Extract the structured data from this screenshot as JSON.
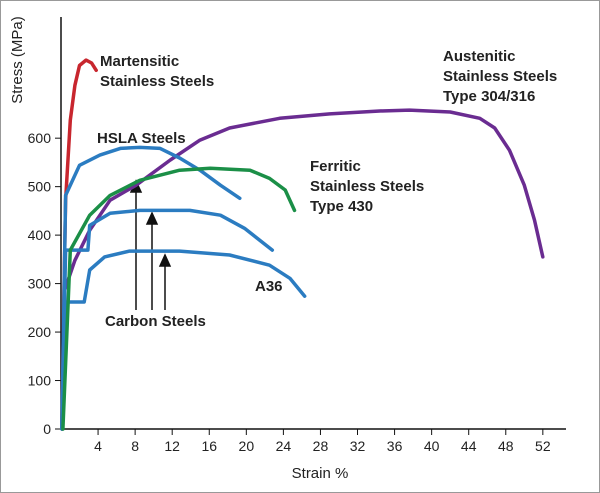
{
  "chart_data": {
    "type": "line",
    "x_label": "Strain %",
    "y_label": "Stress (MPa)",
    "xlim": [
      0,
      54.5
    ],
    "ylim": [
      0,
      850
    ],
    "xticks": [
      4,
      8,
      12,
      16,
      20,
      24,
      28,
      32,
      36,
      40,
      44,
      48,
      52
    ],
    "yticks": [
      0,
      100,
      200,
      300,
      400,
      500,
      600
    ],
    "grid": false,
    "series": [
      {
        "color": "#c8262e",
        "x": [
          0.1,
          0.3,
          0.5,
          1.0,
          1.5,
          2.0,
          2.7,
          3.3,
          3.8
        ],
        "values": [
          0,
          266,
          472,
          637,
          709,
          750,
          761,
          755,
          740
        ]
      },
      {
        "color": "#6a2c91",
        "x": [
          0.1,
          0.4,
          1.5,
          3.1,
          5.3,
          8.1,
          11.8,
          15,
          18.2,
          23.6,
          29,
          34.4,
          37.6,
          42,
          45.2,
          46.8,
          48.4,
          50,
          51.1,
          52
        ],
        "values": [
          0,
          287,
          348,
          410,
          472,
          503,
          555,
          596,
          621,
          641,
          650,
          656,
          658,
          654,
          641,
          621,
          575,
          503,
          431,
          355
        ]
      },
      {
        "color": "#2b7cc1",
        "x": [
          0.1,
          0.5,
          2,
          4.2,
          6.4,
          8.5,
          10.7,
          12.8,
          15,
          17.2,
          19.3
        ],
        "values": [
          0,
          482,
          544,
          565,
          579,
          581,
          579,
          559,
          534,
          503,
          476
        ]
      },
      {
        "color": "#2b7cc1",
        "x": [
          0.1,
          0.5,
          2.9,
          3.1,
          5.3,
          8.5,
          13.9,
          17.2,
          19.8,
          22.8
        ],
        "values": [
          0,
          369,
          369,
          420,
          445,
          451,
          451,
          441,
          414,
          369
        ]
      },
      {
        "color": "#2b7cc1",
        "x": [
          0.1,
          0.6,
          2.5,
          3.1,
          4.7,
          7.4,
          12.8,
          18.2,
          22.5,
          24.7,
          26.3
        ],
        "values": [
          0,
          262,
          262,
          328,
          355,
          367,
          367,
          359,
          338,
          311,
          274
        ]
      },
      {
        "color": "#1b8f47",
        "x": [
          0.2,
          1,
          3.1,
          5.3,
          8.5,
          12.8,
          16.1,
          20.4,
          22.5,
          24.2,
          25.2
        ],
        "values": [
          0,
          369,
          441,
          482,
          513,
          534,
          538,
          534,
          517,
          493,
          451
        ]
      }
    ],
    "annotations": [
      {
        "lines": [
          "Martensitic",
          "Stainless Steels"
        ]
      },
      {
        "lines": [
          "Austenitic",
          "Stainless Steels",
          "Type 304/316"
        ]
      },
      {
        "lines": [
          "HSLA Steels"
        ]
      },
      {
        "lines": [
          "Ferritic",
          "Stainless Steels",
          "Type 430"
        ]
      },
      {
        "lines": [
          "Carbon Steels"
        ]
      },
      {
        "lines": [
          "A36"
        ]
      }
    ]
  }
}
